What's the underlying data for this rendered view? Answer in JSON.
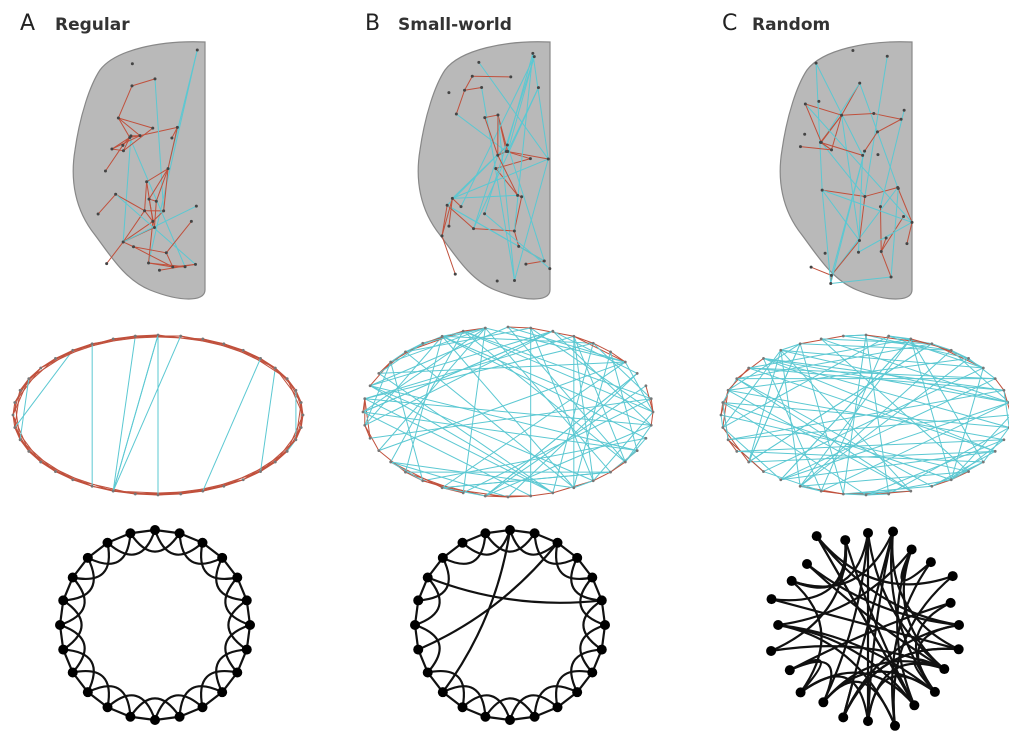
{
  "panels": [
    {
      "letter": "A",
      "label": "Regular"
    },
    {
      "letter": "B",
      "label": "Small-world"
    },
    {
      "letter": "C",
      "label": "Random"
    }
  ]
}
